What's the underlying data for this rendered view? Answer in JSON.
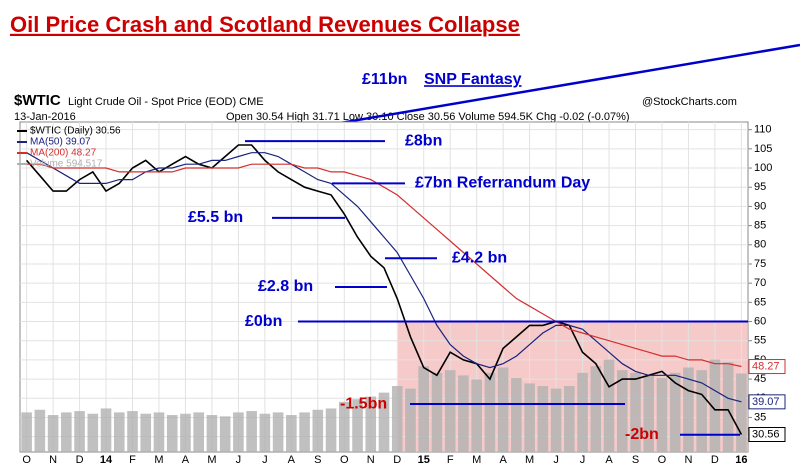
{
  "title": "Oil Price Crash and Scotland Revenues Collapse",
  "header": {
    "symbol": "$WTIC",
    "description": "Light Crude Oil - Spot Price (EOD) CME",
    "date": "13-Jan-2016",
    "quote": "Open 30.54 High 31.71 Low 30.10 Close 30.56 Volume 594.5K Chg -0.02 (-0.07%)",
    "source": "@StockCharts.com"
  },
  "trend": {
    "amount": "£11bn",
    "label": "SNP Fantasy"
  },
  "chart_data": {
    "type": "line",
    "categories": [
      "O",
      null,
      "N",
      null,
      "D",
      null,
      "14",
      null,
      "F",
      null,
      "M",
      null,
      "A",
      null,
      "M",
      null,
      "J",
      null,
      "J",
      null,
      "A",
      null,
      "S",
      null,
      "O",
      null,
      "N",
      null,
      "D",
      null,
      "15",
      null,
      "F",
      null,
      "M",
      null,
      "A",
      null,
      "M",
      null,
      "J",
      null,
      "J",
      null,
      "A",
      null,
      "S",
      null,
      "O",
      null,
      "N",
      null,
      "D",
      null,
      "16"
    ],
    "series": [
      {
        "name": "$WTIC (Daily) 30.56",
        "color": "#000000",
        "values": [
          102,
          98,
          94,
          94,
          97,
          99,
          94,
          96,
          100,
          102,
          99,
          101,
          103,
          101,
          100,
          103,
          106,
          106,
          102,
          99,
          97,
          95,
          94,
          93,
          88,
          82,
          77,
          74,
          66,
          56,
          48,
          46,
          52,
          50,
          49,
          45,
          53,
          56,
          59,
          59,
          60,
          59,
          52,
          49,
          43,
          45,
          45,
          46,
          47,
          44,
          42,
          41,
          37,
          37,
          30.56
        ]
      },
      {
        "name": "MA(50) 39.07",
        "color": "#1a237e",
        "values": [
          104,
          102,
          100,
          98,
          96,
          96,
          96,
          97,
          97,
          99,
          100,
          100,
          101,
          101,
          102,
          102,
          103,
          104,
          104,
          103,
          101,
          99,
          97,
          96,
          93,
          90,
          86,
          82,
          78,
          72,
          66,
          59,
          54,
          51,
          49,
          48,
          49,
          51,
          54,
          57,
          59,
          59,
          58,
          55,
          52,
          49,
          47,
          46,
          46,
          46,
          45,
          44,
          42,
          40,
          39.07
        ]
      },
      {
        "name": "MA(200) 48.27",
        "color": "#d32f2f",
        "values": [
          101,
          101,
          100,
          100,
          100,
          100,
          100,
          99,
          99,
          99,
          99,
          99,
          100,
          100,
          100,
          100,
          100,
          101,
          101,
          101,
          101,
          100,
          100,
          99,
          99,
          98,
          97,
          95,
          93,
          90,
          87,
          84,
          81,
          78,
          75,
          72,
          69,
          66,
          64,
          62,
          60,
          58,
          57,
          56,
          55,
          54,
          53,
          52,
          51,
          51,
          50,
          50,
          49,
          49,
          48.27
        ]
      },
      {
        "name": "Volume 594,517",
        "color": "#b0b0b0",
        "axis": "y2",
        "values": [
          300,
          320,
          280,
          300,
          310,
          290,
          330,
          300,
          310,
          290,
          300,
          280,
          290,
          300,
          280,
          270,
          300,
          310,
          290,
          300,
          280,
          300,
          320,
          330,
          380,
          400,
          420,
          450,
          500,
          480,
          650,
          600,
          620,
          580,
          550,
          600,
          640,
          560,
          520,
          500,
          480,
          500,
          600,
          650,
          700,
          620,
          600,
          580,
          560,
          600,
          640,
          620,
          700,
          680,
          594.517
        ]
      }
    ],
    "ylim": [
      26,
      112
    ],
    "yticks": [
      30,
      35,
      40,
      45,
      50,
      55,
      60,
      65,
      70,
      75,
      80,
      85,
      90,
      95,
      100,
      105,
      110
    ],
    "y2lim": [
      0,
      2500
    ],
    "grid": true,
    "annotations": [
      {
        "label": "£8bn",
        "value": 107,
        "color": "#0000cc"
      },
      {
        "label": "£7bn Referrandum Day",
        "value": 96,
        "color": "#0000cc"
      },
      {
        "label": "£5.5 bn",
        "value": 87,
        "color": "#0000cc"
      },
      {
        "label": "£4.2 bn",
        "value": 76.5,
        "color": "#0000cc"
      },
      {
        "label": "£2.8 bn",
        "value": 69,
        "color": "#0000cc"
      },
      {
        "label": "£0bn",
        "value": 60,
        "color": "#0000cc"
      },
      {
        "label": "-1.5bn",
        "value": 38.5,
        "color": "#cc0000"
      },
      {
        "label": "-2bn",
        "value": 30.5,
        "color": "#cc0000"
      }
    ]
  }
}
